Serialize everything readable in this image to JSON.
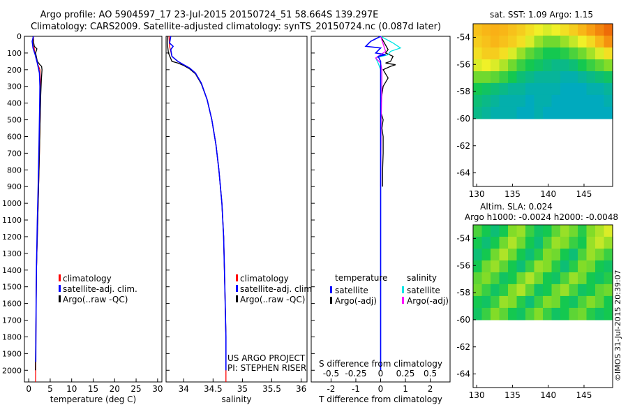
{
  "title_line1": "Argo profile: AO 5904597_17 23-Jul-2015 20150724_51 58.664S 139.297E",
  "title_line2": "Climatology: CARS2009. Satellite-adjusted climatology: synTS_20150724.nc (0.087d later)",
  "footer": "©IMOS 31-Jul-2015 20:39:07",
  "chart_data": [
    {
      "id": "temperature",
      "type": "line",
      "xlabel": "temperature (deg C)",
      "xlim": [
        -1,
        31
      ],
      "xticks": [
        0,
        5,
        10,
        15,
        20,
        25,
        30
      ],
      "xtick_labels": [
        "0",
        "5",
        "10",
        "15",
        "20",
        "25",
        "30"
      ],
      "ylim": [
        0,
        2070
      ],
      "yticks": [
        0,
        100,
        200,
        300,
        400,
        500,
        600,
        700,
        800,
        900,
        1000,
        1100,
        1200,
        1300,
        1400,
        1500,
        1600,
        1700,
        1800,
        1900,
        2000
      ],
      "ytick_labels": [
        "0",
        "100",
        "200",
        "300",
        "400",
        "500",
        "600",
        "700",
        "800",
        "900",
        "1000",
        "1100",
        "1200",
        "1300",
        "1400",
        "1500",
        "1600",
        "1700",
        "1800",
        "1900",
        "2000"
      ],
      "legend": [
        "climatology",
        "satellite-adj. clim.",
        "Argo(..raw -QC)"
      ],
      "series": [
        {
          "name": "climatology",
          "color": "#ff0000",
          "x": [
            1.1,
            1.15,
            1.3,
            1.6,
            2.0,
            2.6,
            2.7,
            2.75,
            2.7,
            2.6,
            2.5,
            2.3,
            2.1,
            1.8,
            1.7,
            1.65,
            1.6
          ],
          "y": [
            0,
            40,
            80,
            120,
            160,
            200,
            260,
            350,
            450,
            550,
            700,
            900,
            1100,
            1400,
            1700,
            1900,
            2070
          ]
        },
        {
          "name": "Argo(..raw -QC)",
          "color": "#000000",
          "x": [
            1.0,
            1.1,
            1.3,
            1.9,
            1.6,
            2.0,
            2.6,
            3.0,
            3.1,
            2.95,
            2.8,
            2.7,
            2.6,
            2.5,
            2.3,
            2.1,
            1.8,
            1.7,
            1.6,
            1.55
          ],
          "y": [
            0,
            30,
            60,
            75,
            100,
            150,
            170,
            180,
            200,
            260,
            350,
            450,
            550,
            700,
            900,
            1100,
            1400,
            1700,
            1900,
            2000
          ]
        },
        {
          "name": "satellite-adj. clim.",
          "color": "#0000ff",
          "x": [
            1.1,
            0.8,
            1.0,
            1.5,
            2.0,
            2.5,
            2.6,
            2.55,
            2.5,
            2.4,
            2.2,
            2.0,
            1.8,
            1.7,
            1.65
          ],
          "y": [
            0,
            30,
            70,
            110,
            160,
            220,
            300,
            400,
            500,
            650,
            900,
            1100,
            1400,
            1700,
            1950
          ]
        }
      ]
    },
    {
      "id": "salinity",
      "type": "line",
      "xlabel": "salinity",
      "xlim": [
        33.7,
        36.1
      ],
      "xticks": [
        34,
        34.5,
        35,
        35.5,
        36
      ],
      "xtick_labels": [
        "34",
        "34.5",
        "35",
        "35.5",
        "36"
      ],
      "ylim": [
        0,
        2070
      ],
      "legend": [
        "climatology",
        "satellite-adj. clim.",
        "Argo(..raw -QC)"
      ],
      "annotation": [
        "US ARGO PROJECT",
        "PI: STEPHEN RISER"
      ],
      "series": [
        {
          "name": "climatology",
          "color": "#ff0000",
          "x": [
            33.75,
            33.76,
            33.8,
            33.9,
            34.0,
            34.1,
            34.2,
            34.3,
            34.4,
            34.48,
            34.55,
            34.6,
            34.65,
            34.68,
            34.7,
            34.72,
            34.72
          ],
          "y": [
            0,
            60,
            120,
            150,
            170,
            190,
            220,
            280,
            380,
            500,
            650,
            800,
            1000,
            1200,
            1500,
            1800,
            2070
          ]
        },
        {
          "name": "Argo(..raw -QC)",
          "color": "#000000",
          "x": [
            33.73,
            33.72,
            33.74,
            33.8,
            33.9,
            34.0,
            34.1,
            34.2,
            34.3,
            34.4,
            34.48,
            34.55,
            34.6,
            34.65,
            34.68,
            34.7,
            34.72,
            34.72
          ],
          "y": [
            0,
            40,
            100,
            150,
            160,
            175,
            195,
            225,
            285,
            380,
            500,
            650,
            800,
            1000,
            1200,
            1500,
            1800,
            2000
          ]
        },
        {
          "name": "satellite-adj. clim.",
          "color": "#0000ff",
          "x": [
            33.78,
            33.77,
            33.76,
            33.82,
            33.78,
            33.8,
            33.9,
            34.0,
            34.1,
            34.2,
            34.3,
            34.4,
            34.48,
            34.55,
            34.6,
            34.65,
            34.68,
            34.7,
            34.72,
            34.72
          ],
          "y": [
            0,
            20,
            40,
            60,
            80,
            120,
            150,
            170,
            190,
            220,
            280,
            380,
            500,
            650,
            800,
            1000,
            1200,
            1500,
            1800,
            2000
          ]
        }
      ]
    },
    {
      "id": "difference",
      "type": "line",
      "xlabel": "T difference from climatology",
      "xlabel_top": "S difference from climatology",
      "xlim": [
        -2.8,
        2.8
      ],
      "xticks": [
        -2,
        -1,
        0,
        1,
        2
      ],
      "xtick_labels": [
        "-2",
        "-1",
        "0",
        "1",
        "2"
      ],
      "xticks_s": [
        -2,
        -1,
        0,
        1,
        2
      ],
      "xtick_labels_s": [
        "-0.5",
        "-0.25",
        "0",
        "0.25",
        "0.5"
      ],
      "ylim": [
        0,
        2070
      ],
      "legend_groups": [
        {
          "header": "temperature",
          "items": [
            {
              "label": "satellite",
              "color": "#0000ff"
            },
            {
              "label": "Argo(-adj)",
              "color": "#000000"
            }
          ]
        },
        {
          "header": "salinity",
          "items": [
            {
              "label": "satellite",
              "color": "#00e5e5"
            },
            {
              "label": "Argo(-adj)",
              "color": "#ff00ff"
            }
          ]
        }
      ],
      "series": [
        {
          "name": "temperature Argo(-adj)",
          "color": "#000000",
          "x": [
            0,
            0.3,
            0.2,
            0.5,
            0.4,
            0.2,
            0.6,
            0.4,
            0.1,
            0.3,
            0.1,
            0.05,
            0.0,
            0.0,
            0.1,
            0.05,
            0.1,
            0.1,
            0.08,
            0.08
          ],
          "y": [
            0,
            80,
            100,
            120,
            150,
            160,
            170,
            180,
            200,
            250,
            300,
            350,
            400,
            450,
            500,
            550,
            600,
            700,
            800,
            900
          ]
        },
        {
          "name": "salinity satellite",
          "color": "#00e5e5",
          "x": [
            0.0,
            0.5,
            0.8,
            0.4,
            0.3,
            -0.2,
            -0.1,
            0.0,
            0.0,
            0.0,
            0.0,
            0.0
          ],
          "y": [
            0,
            40,
            70,
            90,
            110,
            130,
            160,
            200,
            400,
            800,
            1400,
            2000
          ]
        },
        {
          "name": "salinity Argo(-adj)",
          "color": "#ff00ff",
          "x": [
            0.0,
            0.2,
            -0.2,
            0.0,
            0.05,
            0.05,
            0.02,
            0.0
          ],
          "y": [
            0,
            90,
            130,
            160,
            200,
            300,
            500,
            900
          ]
        },
        {
          "name": "temperature satellite",
          "color": "#0000ff",
          "x": [
            0.0,
            -0.4,
            -0.6,
            0.0,
            -0.2,
            0.2,
            -0.1,
            0.0,
            0.0,
            0.0,
            0.0
          ],
          "y": [
            0,
            30,
            60,
            70,
            100,
            110,
            120,
            150,
            300,
            800,
            2000
          ]
        }
      ]
    },
    {
      "id": "sst_map",
      "type": "heatmap",
      "title": "sat. SST: 1.09 Argo: 1.15",
      "xlim": [
        129.5,
        149
      ],
      "ylim": [
        -65,
        -53
      ],
      "xticks": [
        130,
        135,
        140,
        145
      ],
      "xtick_labels": [
        "130",
        "135",
        "140",
        "145"
      ],
      "yticks": [
        -54,
        -56,
        -58,
        -60,
        -62,
        -64
      ],
      "ytick_labels": [
        "-54",
        "-56",
        "-58",
        "-60",
        "-62",
        "-64"
      ],
      "data_lat_min": -60,
      "grid": [
        [
          0.6,
          0.62,
          0.63,
          0.62,
          0.6,
          0.58,
          0.55,
          0.52,
          0.5,
          0.52,
          0.55,
          0.58,
          0.62,
          0.66,
          0.7,
          0.74
        ],
        [
          0.58,
          0.6,
          0.62,
          0.6,
          0.58,
          0.55,
          0.5,
          0.44,
          0.4,
          0.4,
          0.44,
          0.48,
          0.52,
          0.56,
          0.62,
          0.68
        ],
        [
          0.55,
          0.58,
          0.58,
          0.55,
          0.5,
          0.44,
          0.38,
          0.34,
          0.3,
          0.3,
          0.32,
          0.36,
          0.4,
          0.45,
          0.5,
          0.55
        ],
        [
          0.5,
          0.52,
          0.5,
          0.46,
          0.4,
          0.34,
          0.3,
          0.28,
          0.26,
          0.24,
          0.24,
          0.26,
          0.3,
          0.34,
          0.38,
          0.42
        ],
        [
          0.4,
          0.4,
          0.38,
          0.34,
          0.3,
          0.26,
          0.24,
          0.22,
          0.22,
          0.22,
          0.2,
          0.2,
          0.22,
          0.24,
          0.26,
          0.28
        ],
        [
          0.3,
          0.28,
          0.26,
          0.24,
          0.22,
          0.22,
          0.2,
          0.2,
          0.2,
          0.2,
          0.18,
          0.18,
          0.18,
          0.2,
          0.2,
          0.22
        ],
        [
          0.26,
          0.24,
          0.22,
          0.2,
          0.2,
          0.2,
          0.18,
          0.2,
          0.2,
          0.18,
          0.18,
          0.18,
          0.18,
          0.18,
          0.18,
          0.2
        ],
        [
          0.24,
          0.22,
          0.2,
          0.2,
          0.2,
          0.18,
          0.18,
          0.2,
          0.18,
          0.18,
          0.18,
          0.18,
          0.18,
          0.18,
          0.18,
          0.18
        ]
      ]
    },
    {
      "id": "sla_map",
      "type": "heatmap",
      "title": "Altim. SLA: 0.024",
      "subtitle": "Argo h1000: -0.0024 h2000: -0.0048",
      "xlim": [
        129.5,
        149
      ],
      "ylim": [
        -65,
        -53
      ],
      "xticks": [
        130,
        135,
        140,
        145
      ],
      "xtick_labels": [
        "130",
        "135",
        "140",
        "145"
      ],
      "yticks": [
        -54,
        -56,
        -58,
        -60,
        -62,
        -64
      ],
      "ytick_labels": [
        "-54",
        "-56",
        "-58",
        "-60",
        "-62",
        "-64"
      ],
      "data_lat_min": -60,
      "grid": [
        [
          0.36,
          0.3,
          0.26,
          0.3,
          0.42,
          0.44,
          0.34,
          0.28,
          0.3,
          0.38,
          0.44,
          0.4,
          0.32,
          0.42,
          0.46,
          0.5
        ],
        [
          0.3,
          0.26,
          0.3,
          0.4,
          0.46,
          0.4,
          0.3,
          0.26,
          0.36,
          0.44,
          0.42,
          0.34,
          0.3,
          0.44,
          0.48,
          0.44
        ],
        [
          0.26,
          0.3,
          0.4,
          0.46,
          0.4,
          0.3,
          0.26,
          0.32,
          0.42,
          0.4,
          0.3,
          0.26,
          0.36,
          0.44,
          0.4,
          0.34
        ],
        [
          0.3,
          0.4,
          0.44,
          0.38,
          0.3,
          0.26,
          0.34,
          0.44,
          0.42,
          0.32,
          0.26,
          0.32,
          0.42,
          0.4,
          0.3,
          0.28
        ],
        [
          0.38,
          0.42,
          0.36,
          0.28,
          0.3,
          0.4,
          0.46,
          0.4,
          0.3,
          0.28,
          0.36,
          0.44,
          0.4,
          0.3,
          0.28,
          0.32
        ],
        [
          0.4,
          0.34,
          0.28,
          0.32,
          0.42,
          0.46,
          0.38,
          0.28,
          0.3,
          0.4,
          0.44,
          0.36,
          0.28,
          0.3,
          0.38,
          0.4
        ],
        [
          0.3,
          0.28,
          0.34,
          0.44,
          0.42,
          0.32,
          0.26,
          0.34,
          0.42,
          0.4,
          0.3,
          0.28,
          0.36,
          0.42,
          0.38,
          0.3
        ],
        [
          0.28,
          0.34,
          0.42,
          0.38,
          0.3,
          0.28,
          0.36,
          0.42,
          0.34,
          0.28,
          0.3,
          0.38,
          0.4,
          0.32,
          0.28,
          0.3
        ]
      ]
    }
  ]
}
